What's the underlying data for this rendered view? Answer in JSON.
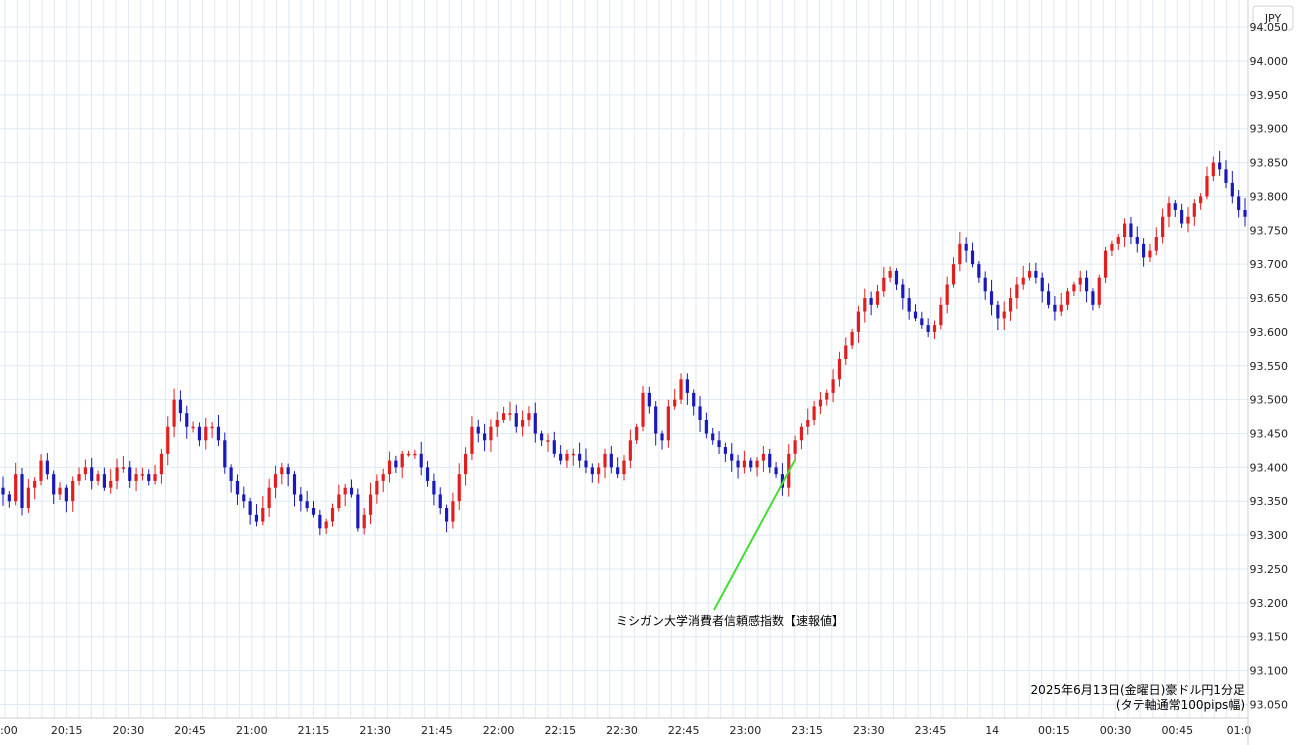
{
  "chart_data": {
    "type": "candlestick",
    "currency_label": "JPY",
    "caption_line1": "2025年6月13日(金曜日)豪ドル円1分足",
    "caption_line2": "(タテ軸通常100pips幅)",
    "annotation": "ミシガン大学消費者信頼感指数【速報値】",
    "ylim": [
      93.03,
      94.09
    ],
    "y_ticks": [
      "94.050",
      "94.000",
      "93.950",
      "93.900",
      "93.850",
      "93.800",
      "93.750",
      "93.700",
      "93.650",
      "93.600",
      "93.550",
      "93.500",
      "93.450",
      "93.400",
      "93.350",
      "93.300",
      "93.250",
      "93.200",
      "93.150",
      "93.100",
      "93.050"
    ],
    "x_ticks": [
      ":00",
      "20:15",
      "20:30",
      "20:45",
      "21:00",
      "21:15",
      "21:30",
      "21:45",
      "22:00",
      "22:15",
      "22:30",
      "22:45",
      "23:00",
      "23:15",
      "23:30",
      "23:45",
      "14",
      "00:15",
      "00:30",
      "00:45",
      "01:0"
    ],
    "colors": {
      "up": "#e02020",
      "down": "#1a1ab8",
      "annotation_line": "#44dd33",
      "grid": "#dfe9f3"
    },
    "closes": [
      93.36,
      93.35,
      93.39,
      93.34,
      93.37,
      93.38,
      93.41,
      93.39,
      93.36,
      93.37,
      93.35,
      93.38,
      93.39,
      93.4,
      93.38,
      93.39,
      93.37,
      93.38,
      93.4,
      93.4,
      93.38,
      93.39,
      93.39,
      93.38,
      93.39,
      93.42,
      93.46,
      93.5,
      93.48,
      93.46,
      93.46,
      93.44,
      93.46,
      93.46,
      93.44,
      93.4,
      93.38,
      93.36,
      93.35,
      93.33,
      93.32,
      93.34,
      93.37,
      93.39,
      93.4,
      93.39,
      93.36,
      93.35,
      93.34,
      93.33,
      93.31,
      93.32,
      93.34,
      93.36,
      93.37,
      93.36,
      93.31,
      93.33,
      93.36,
      93.38,
      93.39,
      93.41,
      93.4,
      93.42,
      93.42,
      93.42,
      93.4,
      93.38,
      93.36,
      93.34,
      93.32,
      93.35,
      93.39,
      93.42,
      93.46,
      93.45,
      93.44,
      93.46,
      93.47,
      93.48,
      93.48,
      93.46,
      93.47,
      93.48,
      93.45,
      93.44,
      93.44,
      93.42,
      93.41,
      93.42,
      93.42,
      93.41,
      93.4,
      93.39,
      93.4,
      93.42,
      93.4,
      93.39,
      93.41,
      93.44,
      93.46,
      93.51,
      93.49,
      93.45,
      93.44,
      93.49,
      93.5,
      93.53,
      93.51,
      93.49,
      93.47,
      93.45,
      93.44,
      93.43,
      93.42,
      93.41,
      93.4,
      93.41,
      93.4,
      93.41,
      93.42,
      93.4,
      93.39,
      93.37,
      93.42,
      93.44,
      93.46,
      93.47,
      93.49,
      93.5,
      93.51,
      93.53,
      93.56,
      93.58,
      93.6,
      93.63,
      93.65,
      93.64,
      93.66,
      93.68,
      93.69,
      93.67,
      93.65,
      93.63,
      93.62,
      93.61,
      93.6,
      93.61,
      93.64,
      93.67,
      93.7,
      93.73,
      93.72,
      93.7,
      93.68,
      93.66,
      93.64,
      93.62,
      93.63,
      93.65,
      93.67,
      93.68,
      93.69,
      93.68,
      93.66,
      93.64,
      93.63,
      93.64,
      93.66,
      93.67,
      93.68,
      93.66,
      93.64,
      93.68,
      93.72,
      93.73,
      93.74,
      93.76,
      93.74,
      93.73,
      93.71,
      93.72,
      93.74,
      93.77,
      93.79,
      93.78,
      93.76,
      93.77,
      93.79,
      93.8,
      93.83,
      93.85,
      93.84,
      93.82,
      93.8,
      93.78,
      93.77
    ]
  }
}
